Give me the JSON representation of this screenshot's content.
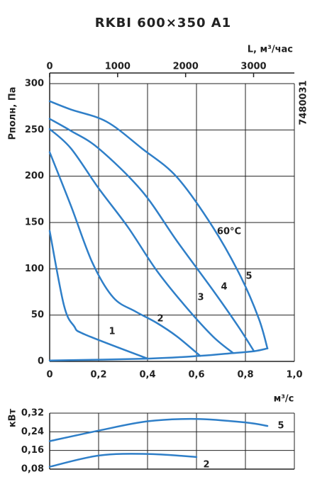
{
  "chart_data": [
    {
      "type": "line",
      "title": "RKBI 600×350 A1",
      "xlabel": "м³/с",
      "ylabel": "Pполн, Па",
      "x2label": "L, м³/час",
      "code": "7480031",
      "annotation": "60°C",
      "xlim": [
        0,
        1.0
      ],
      "xticks": [
        {
          "value": 0,
          "label": "0"
        },
        {
          "value": 0.2,
          "label": "0,2"
        },
        {
          "value": 0.4,
          "label": "0,4"
        },
        {
          "value": 0.6,
          "label": "0,6"
        },
        {
          "value": 0.8,
          "label": "0,8"
        },
        {
          "value": 1.0,
          "label": "1,0"
        }
      ],
      "x2lim": [
        0,
        3600
      ],
      "x2ticks": [
        0,
        1000,
        2000,
        3000
      ],
      "ylim": [
        0,
        300
      ],
      "yticks": [
        0,
        50,
        100,
        150,
        200,
        250,
        300
      ],
      "grid": true,
      "series": [
        {
          "name": "1",
          "color": "#2f7fc8",
          "x": [
            0,
            0.058,
            0.1,
            0.145,
            0.4
          ],
          "values": [
            141,
            61,
            38,
            29,
            3
          ]
        },
        {
          "name": "2",
          "color": "#2f7fc8",
          "x": [
            0,
            0.087,
            0.174,
            0.26,
            0.35,
            0.435,
            0.52,
            0.615
          ],
          "values": [
            226,
            168,
            107,
            69,
            54,
            42,
            27,
            6
          ]
        },
        {
          "name": "3",
          "color": "#2f7fc8",
          "x": [
            0,
            0.087,
            0.2,
            0.32,
            0.435,
            0.55,
            0.667,
            0.75
          ],
          "values": [
            251,
            230,
            187,
            145,
            99,
            61,
            27,
            9
          ]
        },
        {
          "name": "4",
          "color": "#2f7fc8",
          "x": [
            0,
            0.087,
            0.2,
            0.377,
            0.52,
            0.667,
            0.77,
            0.835
          ],
          "values": [
            262,
            249,
            230,
            184,
            130,
            77,
            38,
            11
          ]
        },
        {
          "name": "5",
          "color": "#2f7fc8",
          "x": [
            0,
            0.087,
            0.232,
            0.377,
            0.52,
            0.667,
            0.78,
            0.855,
            0.89
          ],
          "values": [
            281,
            272,
            259,
            230,
            199,
            145,
            92,
            46,
            14
          ]
        },
        {
          "color": "#2f7fc8",
          "x": [
            0,
            0.4,
            0.615,
            0.75,
            0.835,
            0.89
          ],
          "values": [
            1,
            3,
            6,
            9,
            11,
            14
          ]
        }
      ]
    },
    {
      "type": "line",
      "ylabel": "кВт",
      "xlim": [
        0,
        1.0
      ],
      "xticks": [
        0,
        0.2,
        0.4,
        0.6,
        0.8,
        1.0
      ],
      "ylim": [
        0.08,
        0.32
      ],
      "yticks": [
        {
          "value": 0.08,
          "label": "0,08"
        },
        {
          "value": 0.16,
          "label": "0,16"
        },
        {
          "value": 0.24,
          "label": "0,24"
        },
        {
          "value": 0.32,
          "label": "0,32"
        }
      ],
      "grid": true,
      "series": [
        {
          "name": "5",
          "color": "#2f7fc8",
          "x": [
            0,
            0.2,
            0.4,
            0.6,
            0.8,
            0.89
          ],
          "values": [
            0.2,
            0.245,
            0.285,
            0.295,
            0.28,
            0.265
          ]
        },
        {
          "name": "2",
          "color": "#2f7fc8",
          "x": [
            0,
            0.2,
            0.4,
            0.6
          ],
          "values": [
            0.09,
            0.138,
            0.145,
            0.132
          ]
        }
      ]
    }
  ]
}
